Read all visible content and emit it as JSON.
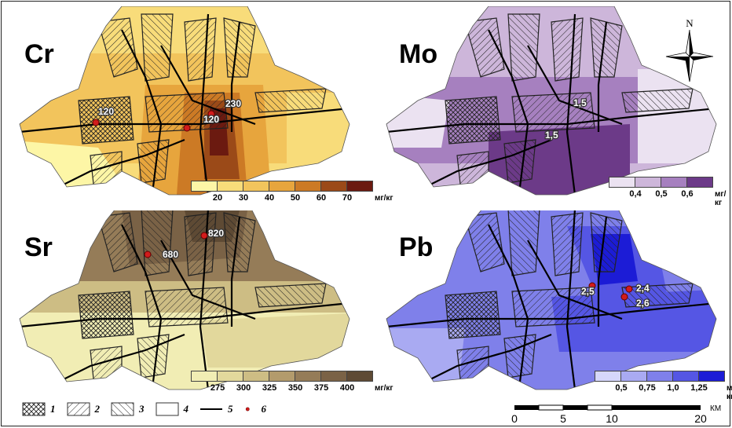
{
  "panels": [
    {
      "element": "Cr",
      "labels": [
        "120",
        "120",
        "230"
      ],
      "ticks": [
        "20",
        "30",
        "40",
        "50",
        "60",
        "70"
      ],
      "unit": "мг/кг",
      "colors": [
        "#fdf6a6",
        "#f8dc7a",
        "#f2c45c",
        "#e7a53d",
        "#cc7a25",
        "#9b4a18",
        "#6b1a10"
      ]
    },
    {
      "element": "Mo",
      "labels": [
        "1,5",
        "1,5"
      ],
      "ticks": [
        "0,4",
        "0,5",
        "0,6"
      ],
      "unit": "мг/кг",
      "colors": [
        "#ebe2f1",
        "#cdb6da",
        "#a680bf",
        "#6c3a88"
      ]
    },
    {
      "element": "Sr",
      "labels": [
        "680",
        "820"
      ],
      "ticks": [
        "275",
        "300",
        "325",
        "350",
        "375",
        "400"
      ],
      "unit": "мг/кг",
      "colors": [
        "#f1edb4",
        "#e2d89c",
        "#cdbd84",
        "#b39b6c",
        "#957c58",
        "#7a6246",
        "#5e4a34"
      ]
    },
    {
      "element": "Pb",
      "labels": [
        "2,5",
        "2,4",
        "2,6"
      ],
      "ticks": [
        "0,5",
        "0,75",
        "1,0",
        "1,25"
      ],
      "unit": "мг/кг",
      "colors": [
        "#d6d7fb",
        "#a9aaf2",
        "#7f80ea",
        "#5556e4",
        "#1c1cd6"
      ]
    }
  ],
  "legend": [
    "1",
    "2",
    "3",
    "4",
    "5",
    "6"
  ],
  "compass": "N",
  "scale": {
    "ticks": [
      "0",
      "5",
      "10",
      "20"
    ],
    "unit": "КМ"
  }
}
